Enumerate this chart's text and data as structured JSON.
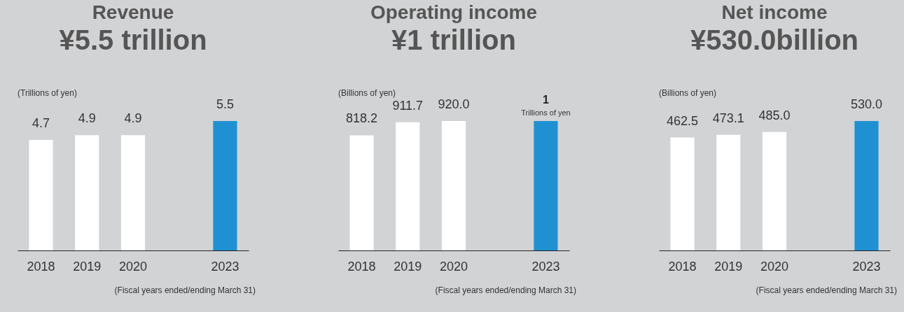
{
  "chart_data": [
    {
      "type": "bar",
      "title": "Revenue",
      "subtitle": "¥5.5 trillion",
      "ylabel": "(Trillions of yen)",
      "categories": [
        "2018",
        "2019",
        "2020",
        null,
        "2023"
      ],
      "values": [
        4.7,
        4.9,
        4.9,
        null,
        5.5
      ],
      "colors": [
        "#ffffff",
        "#ffffff",
        "#ffffff",
        null,
        "#1f91d2"
      ],
      "value_labels": [
        "4.7",
        "4.9",
        "4.9",
        null,
        "5.5"
      ],
      "annotations": [
        "(Fiscal years ended/ending March 31)"
      ]
    },
    {
      "type": "bar",
      "title": "Operating income",
      "subtitle": "¥1 trillion",
      "ylabel": "(Billions of yen)",
      "categories": [
        "2018",
        "2019",
        "2020",
        null,
        "2023"
      ],
      "series": [
        {
          "color": "#ffffff",
          "values": [
            818.2,
            911.7,
            920.0,
            null,
            null
          ],
          "value_labels": [
            "818.2",
            "911.7",
            "920.0",
            null,
            null
          ]
        },
        {
          "name": "Trillions of yen",
          "color": "#1f91d2",
          "axis": "y2",
          "values": [
            null,
            null,
            null,
            null,
            1
          ],
          "value_labels": [
            null,
            null,
            null,
            null,
            "1"
          ]
        }
      ],
      "annotations": [
        "(Fiscal years ended/ending March 31)"
      ]
    },
    {
      "type": "bar",
      "title": "Net income",
      "subtitle": "¥530.0billion",
      "ylabel": "(Billions of yen)",
      "categories": [
        "2018",
        "2019",
        "2020",
        null,
        "2023"
      ],
      "values": [
        462.5,
        473.1,
        485.0,
        null,
        530.0
      ],
      "colors": [
        "#ffffff",
        "#ffffff",
        "#ffffff",
        null,
        "#1f91d2"
      ],
      "value_labels": [
        "462.5",
        "473.1",
        "485.0",
        null,
        "530.0"
      ],
      "annotations": [
        "(Fiscal years ended/ending March 31)"
      ]
    }
  ]
}
